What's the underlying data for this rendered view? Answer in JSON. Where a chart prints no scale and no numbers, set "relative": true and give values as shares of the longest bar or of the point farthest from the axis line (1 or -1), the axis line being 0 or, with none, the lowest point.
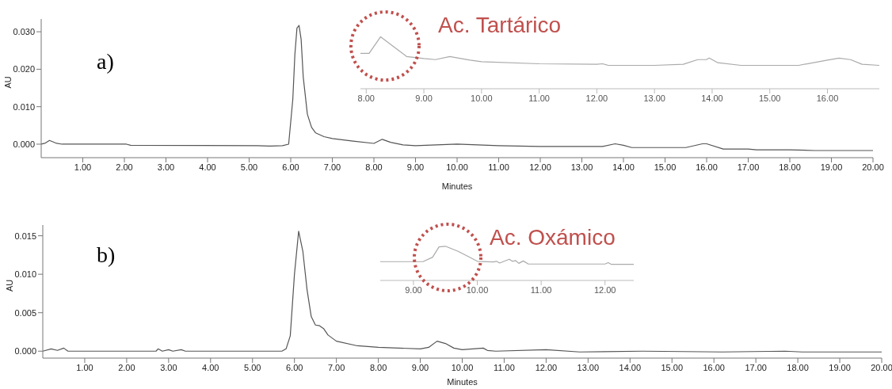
{
  "chart_data": [
    {
      "type": "line",
      "xlabel": "Minutes",
      "ylabel": "AU",
      "annotations": [
        "a)"
      ],
      "xlim": [
        0,
        20
      ],
      "ylim": [
        -0.0036,
        0.0334
      ],
      "xticks": [
        {
          "value": 1,
          "label": "1.00"
        },
        {
          "value": 2,
          "label": "2.00"
        },
        {
          "value": 3,
          "label": "3.00"
        },
        {
          "value": 4,
          "label": "4.00"
        },
        {
          "value": 5,
          "label": "5.00"
        },
        {
          "value": 6,
          "label": "6.00"
        },
        {
          "value": 7,
          "label": "7.00"
        },
        {
          "value": 8,
          "label": "8.00"
        },
        {
          "value": 9,
          "label": "9.00"
        },
        {
          "value": 10,
          "label": "10.00"
        },
        {
          "value": 11,
          "label": "11.00"
        },
        {
          "value": 12,
          "label": "12.00"
        },
        {
          "value": 13,
          "label": "13.00"
        },
        {
          "value": 14,
          "label": "14.00"
        },
        {
          "value": 15,
          "label": "15.00"
        },
        {
          "value": 16,
          "label": "16.00"
        },
        {
          "value": 17,
          "label": "17.00"
        },
        {
          "value": 18,
          "label": "18.00"
        },
        {
          "value": 19,
          "label": "19.00"
        },
        {
          "value": 20,
          "label": "20.00"
        }
      ],
      "yticks": [
        {
          "value": 0,
          "label": "0.000"
        },
        {
          "value": 0.01,
          "label": "0.010"
        },
        {
          "value": 0.02,
          "label": "0.020"
        },
        {
          "value": 0.03,
          "label": "0.030"
        }
      ],
      "series": [
        {
          "color": "#555555",
          "x": [
            0,
            0.1,
            0.2,
            0.35,
            0.5,
            2.05,
            2.15,
            5.2,
            5.5,
            5.8,
            5.95,
            6.05,
            6.1,
            6.15,
            6.2,
            6.25,
            6.3,
            6.4,
            6.5,
            6.6,
            6.8,
            7.0,
            7.5,
            8.0,
            8.2,
            8.4,
            8.7,
            9.0,
            10.0,
            11.0,
            12.0,
            13.0,
            13.5,
            13.8,
            14.0,
            14.2,
            15.5,
            15.9,
            16.0,
            16.4,
            17.0,
            17.2,
            18.0,
            18.6,
            19.0,
            20.0
          ],
          "values": [
            0,
            0.0003,
            0.001,
            0.0003,
            0,
            0,
            -0.0003,
            -0.0004,
            -0.0005,
            -0.0004,
            0,
            0.012,
            0.024,
            0.031,
            0.0317,
            0.028,
            0.018,
            0.008,
            0.0045,
            0.003,
            0.002,
            0.0015,
            0.0008,
            0.0002,
            0.0013,
            0.0005,
            -0.0002,
            -0.0004,
            0,
            -0.0004,
            -0.0006,
            -0.0006,
            -0.0006,
            0.0001,
            -0.0003,
            -0.0009,
            -0.0009,
            0.0001,
            0.0001,
            -0.0013,
            -0.0013,
            -0.0015,
            -0.0015,
            -0.0017,
            -0.0017,
            -0.0017
          ]
        }
      ]
    },
    {
      "type": "line",
      "relative": true,
      "tick_labels": "x",
      "annotations": [
        "Ac. Tartárico"
      ],
      "xlim": [
        7.9,
        16.9
      ],
      "xticks": [
        {
          "value": 8,
          "label": "8.00"
        },
        {
          "value": 9,
          "label": "9.00"
        },
        {
          "value": 10,
          "label": "10.00"
        },
        {
          "value": 11,
          "label": "11.00"
        },
        {
          "value": 12,
          "label": "12.00"
        },
        {
          "value": 13,
          "label": "13.00"
        },
        {
          "value": 14,
          "label": "14.00"
        },
        {
          "value": 15,
          "label": "15.00"
        },
        {
          "value": 16,
          "label": "16.00"
        }
      ],
      "series": [
        {
          "color": "#aaaaaa",
          "x": [
            7.9,
            8.05,
            8.25,
            8.5,
            8.7,
            9.0,
            9.2,
            9.45,
            9.8,
            10.0,
            11.0,
            12.0,
            12.1,
            12.2,
            13.0,
            13.5,
            13.75,
            13.9,
            13.95,
            14.1,
            14.5,
            15.0,
            15.5,
            16.0,
            16.2,
            16.4,
            16.6,
            16.9
          ],
          "values": [
            0.68,
            0.68,
            1,
            0.79,
            0.62,
            0.58,
            0.56,
            0.62,
            0.55,
            0.52,
            0.48,
            0.47,
            0.48,
            0.45,
            0.45,
            0.47,
            0.56,
            0.56,
            0.59,
            0.5,
            0.45,
            0.45,
            0.45,
            0.55,
            0.59,
            0.56,
            0.47,
            0.45
          ]
        }
      ]
    },
    {
      "type": "line",
      "xlabel": "Minutes",
      "ylabel": "AU",
      "annotations": [
        "b)"
      ],
      "xlim": [
        0,
        20
      ],
      "ylim": [
        -0.0009,
        0.0164
      ],
      "xticks": [
        {
          "value": 1,
          "label": "1.00"
        },
        {
          "value": 2,
          "label": "2.00"
        },
        {
          "value": 3,
          "label": "3.00"
        },
        {
          "value": 4,
          "label": "4.00"
        },
        {
          "value": 5,
          "label": "5.00"
        },
        {
          "value": 6,
          "label": "6.00"
        },
        {
          "value": 7,
          "label": "7.00"
        },
        {
          "value": 8,
          "label": "8.00"
        },
        {
          "value": 9,
          "label": "9.00"
        },
        {
          "value": 10,
          "label": "10.00"
        },
        {
          "value": 11,
          "label": "11.00"
        },
        {
          "value": 12,
          "label": "12.00"
        },
        {
          "value": 13,
          "label": "13.00"
        },
        {
          "value": 14,
          "label": "14.00"
        },
        {
          "value": 15,
          "label": "15.00"
        },
        {
          "value": 16,
          "label": "16.00"
        },
        {
          "value": 17,
          "label": "17.00"
        },
        {
          "value": 18,
          "label": "18.00"
        },
        {
          "value": 19,
          "label": "19.00"
        },
        {
          "value": 20,
          "label": "20.00"
        }
      ],
      "yticks": [
        {
          "value": 0,
          "label": "0.000"
        },
        {
          "value": 0.005,
          "label": "0.005"
        },
        {
          "value": 0.01,
          "label": "0.010"
        },
        {
          "value": 0.015,
          "label": "0.015"
        }
      ],
      "series": [
        {
          "color": "#555555",
          "x": [
            0,
            0.2,
            0.35,
            0.5,
            0.6,
            2.7,
            2.75,
            2.85,
            3.0,
            3.1,
            3.3,
            3.4,
            5.7,
            5.8,
            5.9,
            6.0,
            6.1,
            6.2,
            6.3,
            6.4,
            6.5,
            6.6,
            6.7,
            6.8,
            7.0,
            7.5,
            8.0,
            9.0,
            9.2,
            9.4,
            9.6,
            9.8,
            10.0,
            10.5,
            10.6,
            10.8,
            12.0,
            12.8,
            14.3,
            16.2,
            17.7,
            18.1,
            20.0
          ],
          "values": [
            0,
            0.0003,
            0.0001,
            0.0004,
            0,
            0,
            0.0003,
            0,
            0.0002,
            0,
            0.0002,
            0,
            0,
            0.0003,
            0.002,
            0.01,
            0.0156,
            0.013,
            0.008,
            0.0045,
            0.0034,
            0.0033,
            0.0029,
            0.0021,
            0.0013,
            0.0007,
            0.0005,
            0.0003,
            0.0005,
            0.0013,
            0.001,
            0.0004,
            0.0002,
            0.0004,
            0.0001,
            0,
            0.0002,
            -0.0001,
            0,
            -0.0001,
            0,
            -0.0001,
            -0.0001
          ]
        }
      ]
    },
    {
      "type": "line",
      "relative": true,
      "tick_labels": "x",
      "annotations": [
        "Ac. Oxámico"
      ],
      "xlim": [
        8.48,
        12.45
      ],
      "xticks": [
        {
          "value": 9,
          "label": "9.00"
        },
        {
          "value": 10,
          "label": "10.00"
        },
        {
          "value": 11,
          "label": "11.00"
        },
        {
          "value": 12,
          "label": "12.00"
        }
      ],
      "series": [
        {
          "color": "#aaaaaa",
          "x": [
            8.48,
            9.15,
            9.3,
            9.4,
            9.5,
            9.7,
            9.9,
            10.0,
            10.25,
            10.3,
            10.35,
            10.5,
            10.55,
            10.6,
            10.65,
            10.72,
            10.8,
            12.0,
            12.05,
            12.1,
            12.45
          ],
          "values": [
            0.55,
            0.55,
            0.68,
            0.98,
            1,
            0.85,
            0.66,
            0.56,
            0.54,
            0.56,
            0.51,
            0.62,
            0.56,
            0.58,
            0.5,
            0.57,
            0.48,
            0.48,
            0.52,
            0.47,
            0.47
          ]
        }
      ]
    }
  ]
}
